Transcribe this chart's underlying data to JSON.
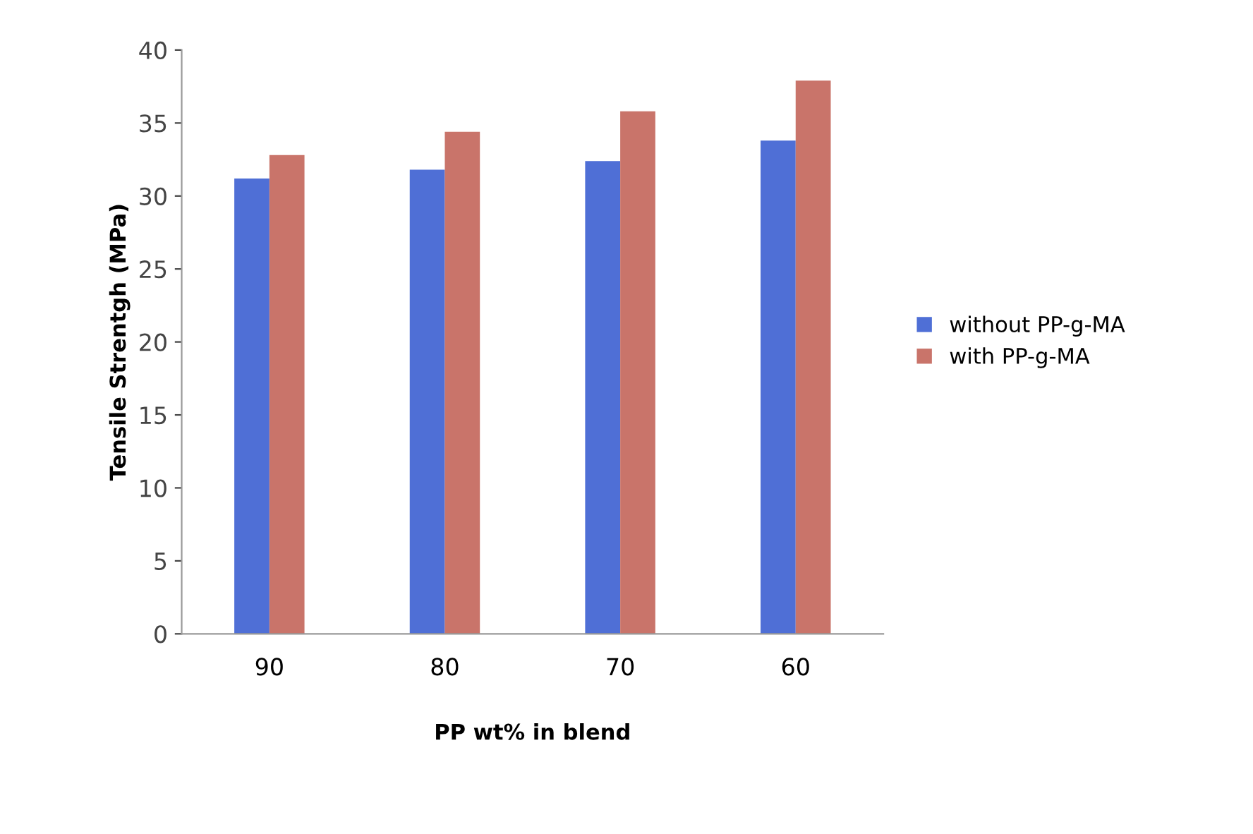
{
  "chart_data": {
    "type": "bar",
    "xlabel": "PP wt% in blend",
    "ylabel": "Tensile Strentgh (MPa)",
    "categories": [
      "90",
      "80",
      "70",
      "60"
    ],
    "series": [
      {
        "name": "without PP-g-MA",
        "color": "#4f6fd6",
        "values": [
          31.2,
          31.8,
          32.4,
          33.8
        ]
      },
      {
        "name": "with PP-g-MA",
        "color": "#c9746a",
        "values": [
          32.8,
          34.4,
          35.8,
          37.9
        ]
      }
    ],
    "ylim": [
      0,
      40
    ],
    "yticks": [
      0,
      5,
      10,
      15,
      20,
      25,
      30,
      35,
      40
    ],
    "grid": false,
    "legend": "right"
  }
}
